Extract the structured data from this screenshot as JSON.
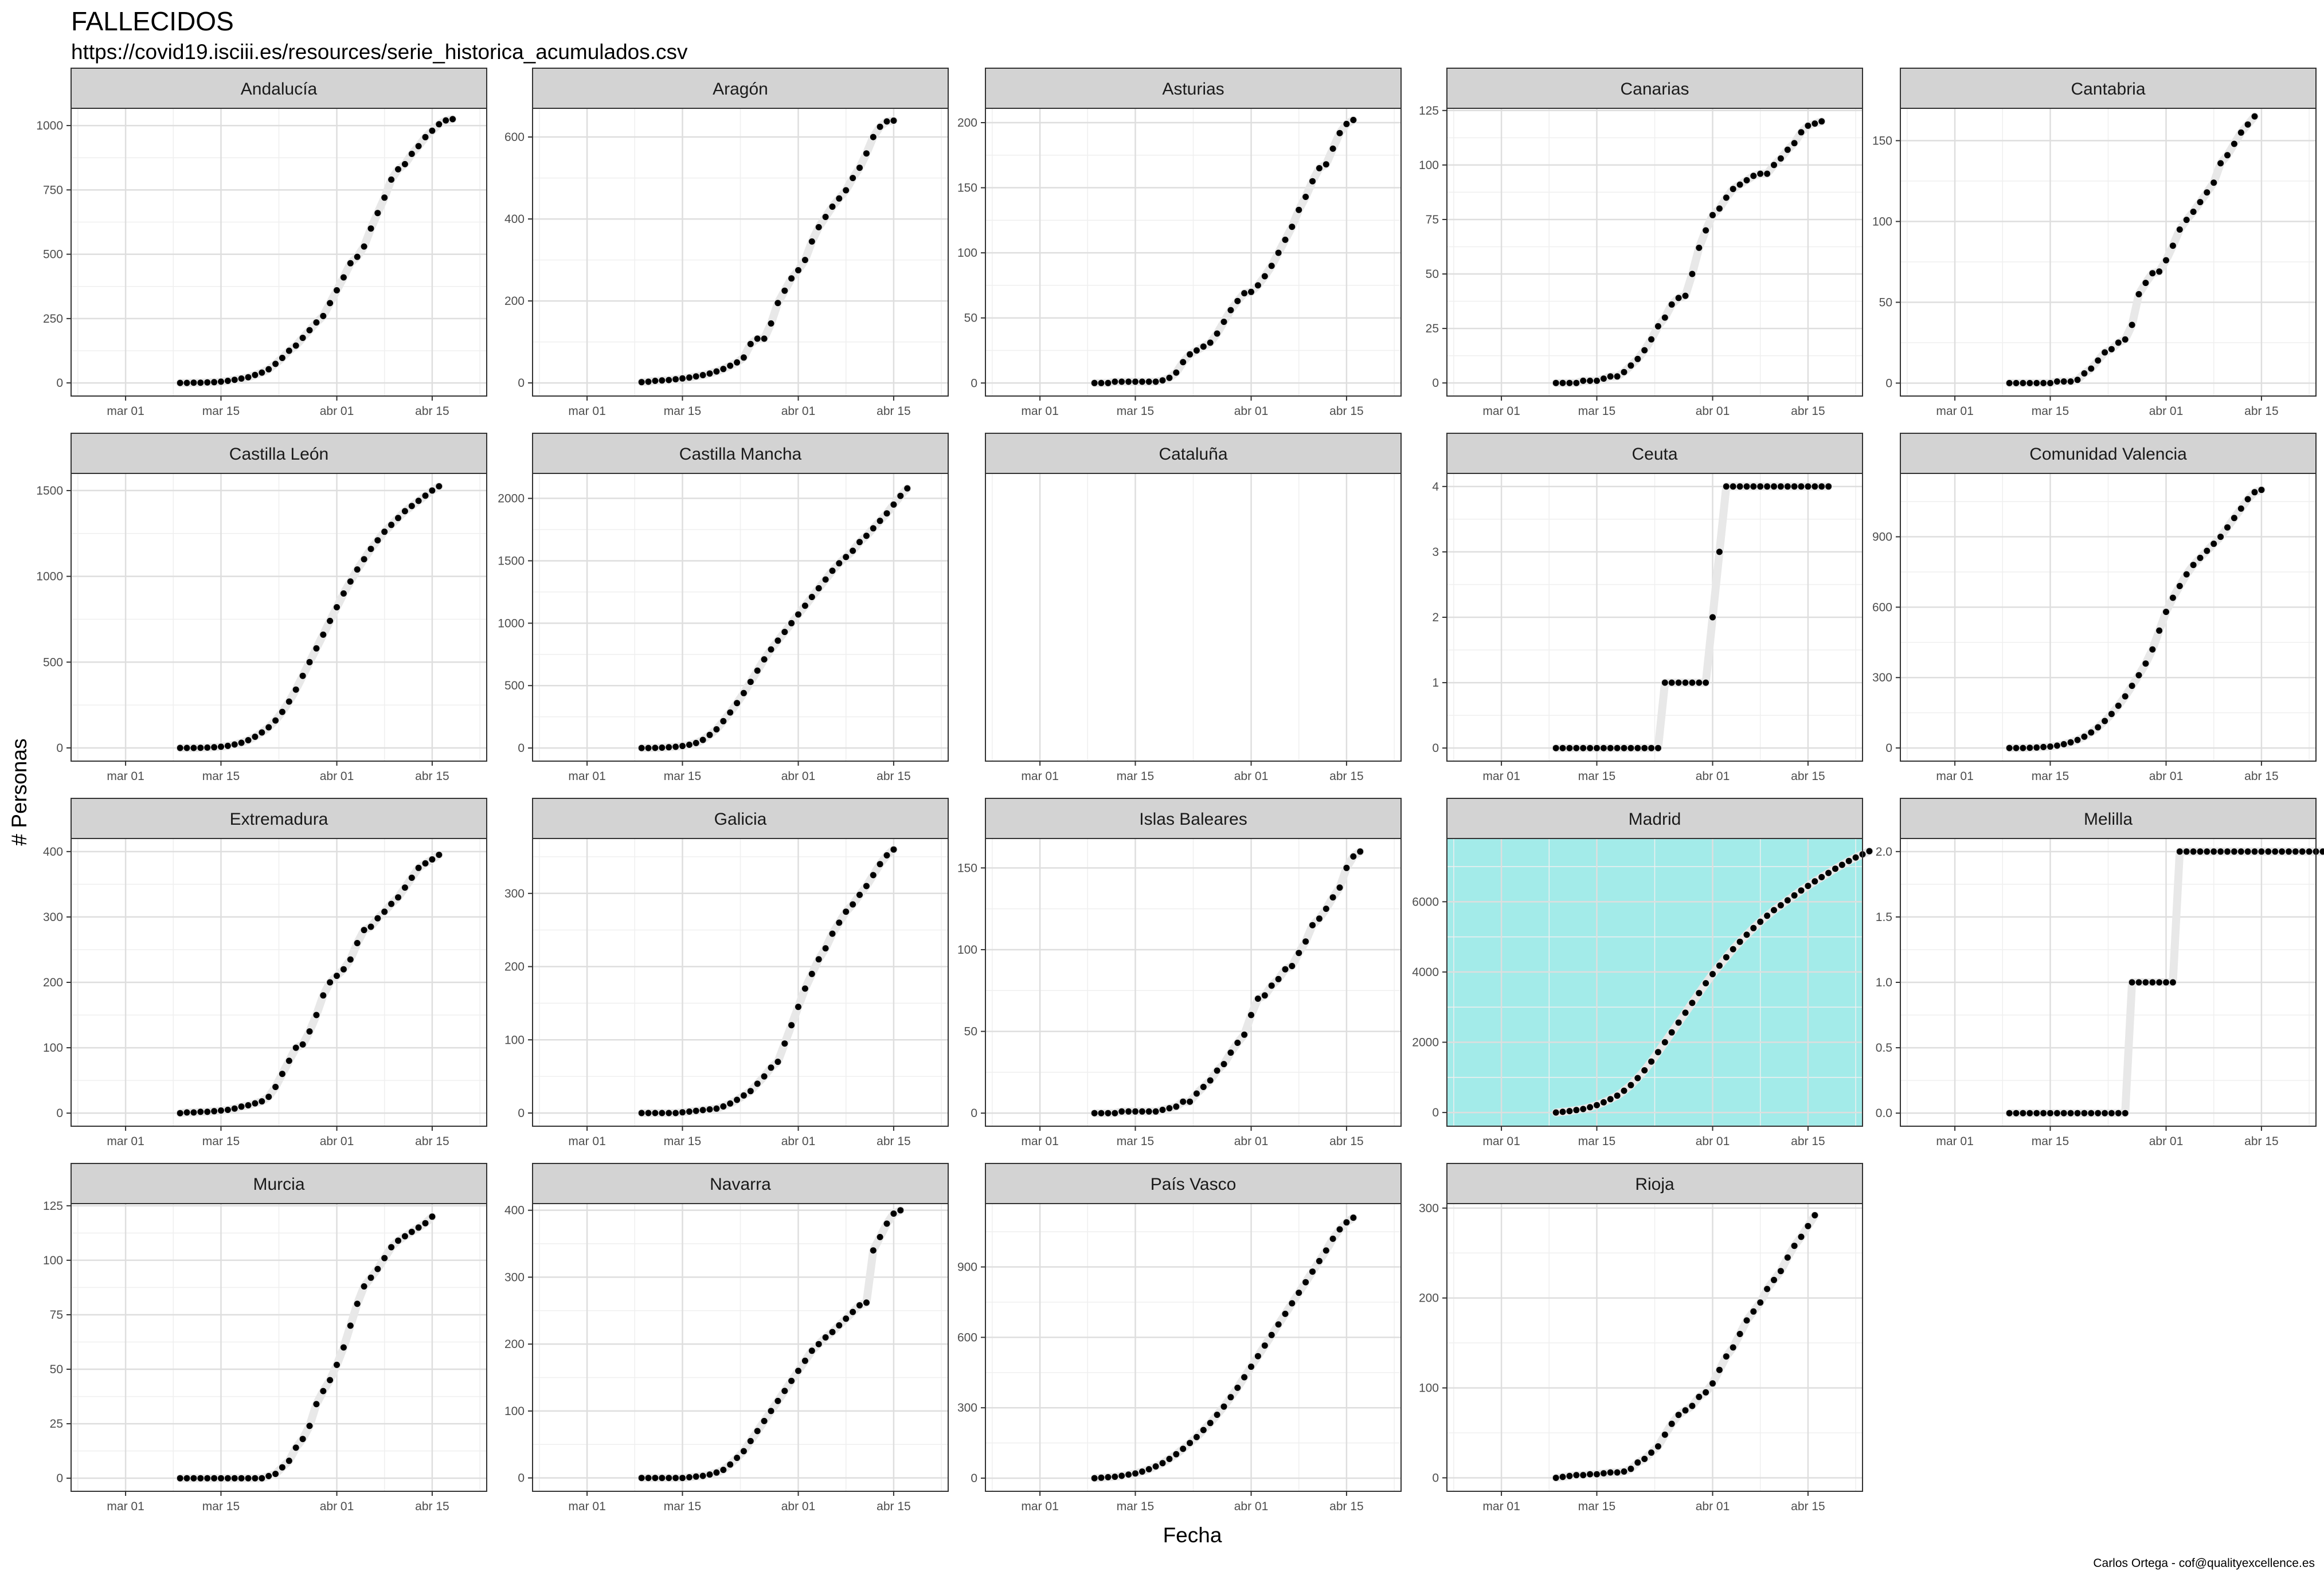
{
  "title": "FALLECIDOS",
  "subtitle": "https://covid19.isciii.es/resources/serie_historica_acumulados.csv",
  "caption": "Carlos Ortega - cof@qualityexcellence.es",
  "colors": {
    "panel_background": "#ffffff",
    "highlight_background": "#a3ebe9",
    "strip_background": "#d3d3d3",
    "grid_major": "#dedede",
    "grid_minor": "#efefef",
    "points": "#000000",
    "smooth": "#e8e8e8"
  },
  "chart_data": {
    "type": "scatter",
    "facet": "wrap",
    "facet_layout": "4 rows x 5 columns, free y scales",
    "xlabel": "Fecha",
    "ylabel": "# Personas",
    "x_ticks": [
      "mar 01",
      "mar 15",
      "abr 01",
      "abr 15"
    ],
    "x_tick_days": [
      1,
      15,
      32,
      46
    ],
    "xlim_days": [
      -7,
      54
    ],
    "x_day_note": "days counted from 29 Feb 2020 (day 1 = 1 Mar, day 32 = 1 Apr)",
    "x_start_day": 9,
    "highlight_panel": "Madrid",
    "grid": true,
    "legend": "none",
    "panels": [
      {
        "name": "Andalucía",
        "yticks": [
          0,
          250,
          500,
          750,
          1000
        ],
        "ylim": [
          -51,
          1067
        ],
        "values": [
          0,
          0,
          1,
          1,
          2,
          3,
          5,
          8,
          12,
          17,
          22,
          31,
          40,
          53,
          74,
          97,
          125,
          145,
          175,
          205,
          235,
          260,
          310,
          360,
          410,
          465,
          490,
          530,
          600,
          660,
          720,
          790,
          830,
          850,
          890,
          920,
          955,
          980,
          1005,
          1020,
          1025
        ]
      },
      {
        "name": "Aragón",
        "yticks": [
          0,
          200,
          400,
          600
        ],
        "ylim": [
          -32,
          670
        ],
        "values": [
          2,
          3,
          5,
          6,
          7,
          9,
          11,
          13,
          16,
          19,
          23,
          28,
          34,
          42,
          50,
          62,
          95,
          108,
          108,
          145,
          195,
          225,
          255,
          275,
          300,
          345,
          380,
          405,
          430,
          450,
          470,
          500,
          525,
          560,
          600,
          625,
          638,
          640
        ]
      },
      {
        "name": "Asturias",
        "yticks": [
          0,
          50,
          100,
          150,
          200
        ],
        "ylim": [
          -10,
          211
        ],
        "values": [
          0,
          0,
          0,
          1,
          1,
          1,
          1,
          1,
          1,
          1,
          2,
          4,
          8,
          16,
          22,
          25,
          28,
          31,
          38,
          47,
          56,
          63,
          69,
          70,
          75,
          82,
          90,
          100,
          110,
          120,
          133,
          143,
          155,
          165,
          168,
          180,
          192,
          199,
          202
        ]
      },
      {
        "name": "Canarias",
        "yticks": [
          0,
          25,
          50,
          75,
          100,
          125
        ],
        "ylim": [
          -6,
          126
        ],
        "values": [
          0,
          0,
          0,
          0,
          1,
          1,
          1,
          2,
          3,
          3,
          5,
          8,
          11,
          15,
          20,
          26,
          30,
          36,
          39,
          40,
          50,
          62,
          70,
          77,
          80,
          85,
          89,
          91,
          93,
          95,
          96,
          96,
          100,
          103,
          107,
          110,
          115,
          118,
          119,
          120
        ]
      },
      {
        "name": "Cantabria",
        "yticks": [
          0,
          50,
          100,
          150
        ],
        "ylim": [
          -8,
          170
        ],
        "values": [
          0,
          0,
          0,
          0,
          0,
          0,
          0,
          1,
          1,
          1,
          2,
          6,
          9,
          14,
          19,
          21,
          25,
          27,
          36,
          55,
          62,
          68,
          69,
          76,
          85,
          95,
          101,
          106,
          112,
          118,
          124,
          136,
          141,
          148,
          155,
          160,
          165
        ]
      },
      {
        "name": "Castilla León",
        "yticks": [
          0,
          500,
          1000,
          1500
        ],
        "ylim": [
          -77,
          1600
        ],
        "values": [
          0,
          0,
          0,
          1,
          2,
          4,
          7,
          12,
          20,
          30,
          45,
          65,
          90,
          120,
          160,
          210,
          270,
          340,
          420,
          500,
          580,
          660,
          740,
          820,
          900,
          970,
          1040,
          1100,
          1160,
          1210,
          1260,
          1300,
          1340,
          1380,
          1410,
          1440,
          1470,
          1500,
          1525
        ]
      },
      {
        "name": "Castilla Mancha",
        "yticks": [
          0,
          500,
          1000,
          1500,
          2000
        ],
        "ylim": [
          -105,
          2200
        ],
        "values": [
          0,
          0,
          1,
          3,
          6,
          10,
          16,
          26,
          40,
          65,
          105,
          150,
          215,
          285,
          360,
          440,
          530,
          620,
          710,
          790,
          860,
          930,
          1000,
          1070,
          1140,
          1210,
          1280,
          1350,
          1420,
          1480,
          1530,
          1580,
          1650,
          1700,
          1760,
          1820,
          1880,
          1950,
          2020,
          2080
        ]
      },
      {
        "name": "Cataluña",
        "yticks": [],
        "ylim": [
          0,
          1
        ],
        "values": []
      },
      {
        "name": "Ceuta",
        "yticks": [
          0,
          1,
          2,
          3,
          4
        ],
        "ylim": [
          -0.2,
          4.2
        ],
        "values": [
          0,
          0,
          0,
          0,
          0,
          0,
          0,
          0,
          0,
          0,
          0,
          0,
          0,
          0,
          0,
          0,
          1,
          1,
          1,
          1,
          1,
          1,
          1,
          2,
          3,
          4,
          4,
          4,
          4,
          4,
          4,
          4,
          4,
          4,
          4,
          4,
          4,
          4,
          4,
          4,
          4
        ]
      },
      {
        "name": "Comunidad Valencia",
        "yticks": [
          0,
          300,
          600,
          900
        ],
        "ylim": [
          -56,
          1170
        ],
        "values": [
          0,
          0,
          0,
          1,
          2,
          4,
          6,
          10,
          16,
          24,
          34,
          48,
          66,
          88,
          115,
          145,
          180,
          220,
          265,
          310,
          360,
          420,
          500,
          580,
          640,
          690,
          740,
          780,
          810,
          840,
          870,
          900,
          940,
          980,
          1020,
          1060,
          1090,
          1100
        ]
      },
      {
        "name": "Extremadura",
        "yticks": [
          0,
          100,
          200,
          300,
          400
        ],
        "ylim": [
          -20,
          420
        ],
        "values": [
          0,
          1,
          1,
          2,
          2,
          3,
          4,
          5,
          7,
          10,
          12,
          15,
          18,
          25,
          40,
          60,
          80,
          100,
          105,
          125,
          150,
          180,
          200,
          210,
          220,
          235,
          260,
          280,
          285,
          298,
          308,
          320,
          330,
          345,
          360,
          375,
          382,
          388,
          395
        ]
      },
      {
        "name": "Galicia",
        "yticks": [
          0,
          100,
          200,
          300
        ],
        "ylim": [
          -18,
          375
        ],
        "values": [
          0,
          0,
          0,
          0,
          0,
          0,
          1,
          2,
          3,
          4,
          5,
          6,
          9,
          13,
          18,
          24,
          30,
          40,
          50,
          62,
          70,
          95,
          120,
          145,
          170,
          190,
          210,
          225,
          245,
          260,
          275,
          285,
          298,
          310,
          325,
          340,
          352,
          360
        ]
      },
      {
        "name": "Islas Baleares",
        "yticks": [
          0,
          50,
          100,
          150
        ],
        "ylim": [
          -8,
          168
        ],
        "values": [
          0,
          0,
          0,
          0,
          1,
          1,
          1,
          1,
          1,
          1,
          2,
          3,
          4,
          7,
          7,
          12,
          16,
          20,
          26,
          30,
          37,
          43,
          48,
          60,
          70,
          72,
          78,
          82,
          88,
          90,
          98,
          105,
          115,
          119,
          125,
          132,
          138,
          150,
          157,
          160
        ]
      },
      {
        "name": "Madrid",
        "yticks": [
          0,
          2000,
          4000,
          6000
        ],
        "ylim": [
          -390,
          7800
        ],
        "values": [
          0,
          20,
          40,
          70,
          100,
          150,
          210,
          290,
          380,
          480,
          620,
          780,
          980,
          1200,
          1450,
          1720,
          2000,
          2280,
          2560,
          2840,
          3120,
          3400,
          3680,
          3940,
          4180,
          4420,
          4650,
          4860,
          5060,
          5250,
          5430,
          5600,
          5760,
          5900,
          6040,
          6180,
          6320,
          6450,
          6580,
          6700,
          6820,
          6940,
          7050,
          7160,
          7260,
          7350,
          7440
        ]
      },
      {
        "name": "Melilla",
        "yticks": [
          0.0,
          0.5,
          1.0,
          1.5,
          2.0
        ],
        "ylim": [
          -0.1,
          2.1
        ],
        "values": [
          0,
          0,
          0,
          0,
          0,
          0,
          0,
          0,
          0,
          0,
          0,
          0,
          0,
          0,
          0,
          0,
          0,
          0,
          1,
          1,
          1,
          1,
          1,
          1,
          1,
          2,
          2,
          2,
          2,
          2,
          2,
          2,
          2,
          2,
          2,
          2,
          2,
          2,
          2,
          2,
          2,
          2,
          2,
          2,
          2,
          2,
          2
        ]
      },
      {
        "name": "Murcia",
        "yticks": [
          0,
          25,
          50,
          75,
          100,
          125
        ],
        "ylim": [
          -6,
          126
        ],
        "values": [
          0,
          0,
          0,
          0,
          0,
          0,
          0,
          0,
          0,
          0,
          0,
          0,
          0,
          1,
          2,
          5,
          8,
          14,
          18,
          24,
          34,
          40,
          45,
          52,
          60,
          70,
          80,
          88,
          92,
          96,
          101,
          106,
          109,
          111,
          113,
          115,
          117,
          120
        ]
      },
      {
        "name": "Navarra",
        "yticks": [
          0,
          100,
          200,
          300,
          400
        ],
        "ylim": [
          -20,
          410
        ],
        "values": [
          0,
          0,
          0,
          0,
          0,
          0,
          0,
          1,
          2,
          3,
          5,
          8,
          12,
          20,
          30,
          40,
          55,
          70,
          85,
          100,
          115,
          130,
          145,
          160,
          175,
          190,
          200,
          210,
          218,
          228,
          238,
          248,
          258,
          262,
          340,
          360,
          380,
          395,
          400
        ]
      },
      {
        "name": "País Vasco",
        "yticks": [
          0,
          300,
          600,
          900
        ],
        "ylim": [
          -56,
          1170
        ],
        "values": [
          0,
          2,
          4,
          6,
          10,
          15,
          20,
          28,
          38,
          50,
          64,
          82,
          102,
          125,
          150,
          175,
          205,
          235,
          270,
          305,
          345,
          385,
          430,
          475,
          520,
          565,
          610,
          655,
          700,
          745,
          790,
          835,
          880,
          925,
          970,
          1020,
          1060,
          1090,
          1110
        ]
      },
      {
        "name": "Rioja",
        "yticks": [
          0,
          100,
          200,
          300
        ],
        "ylim": [
          -15,
          305
        ],
        "values": [
          0,
          1,
          2,
          3,
          3,
          4,
          4,
          5,
          6,
          6,
          7,
          10,
          17,
          21,
          28,
          35,
          48,
          60,
          70,
          75,
          80,
          90,
          95,
          105,
          120,
          135,
          145,
          160,
          175,
          185,
          195,
          210,
          220,
          230,
          245,
          258,
          268,
          280,
          292
        ]
      }
    ]
  }
}
